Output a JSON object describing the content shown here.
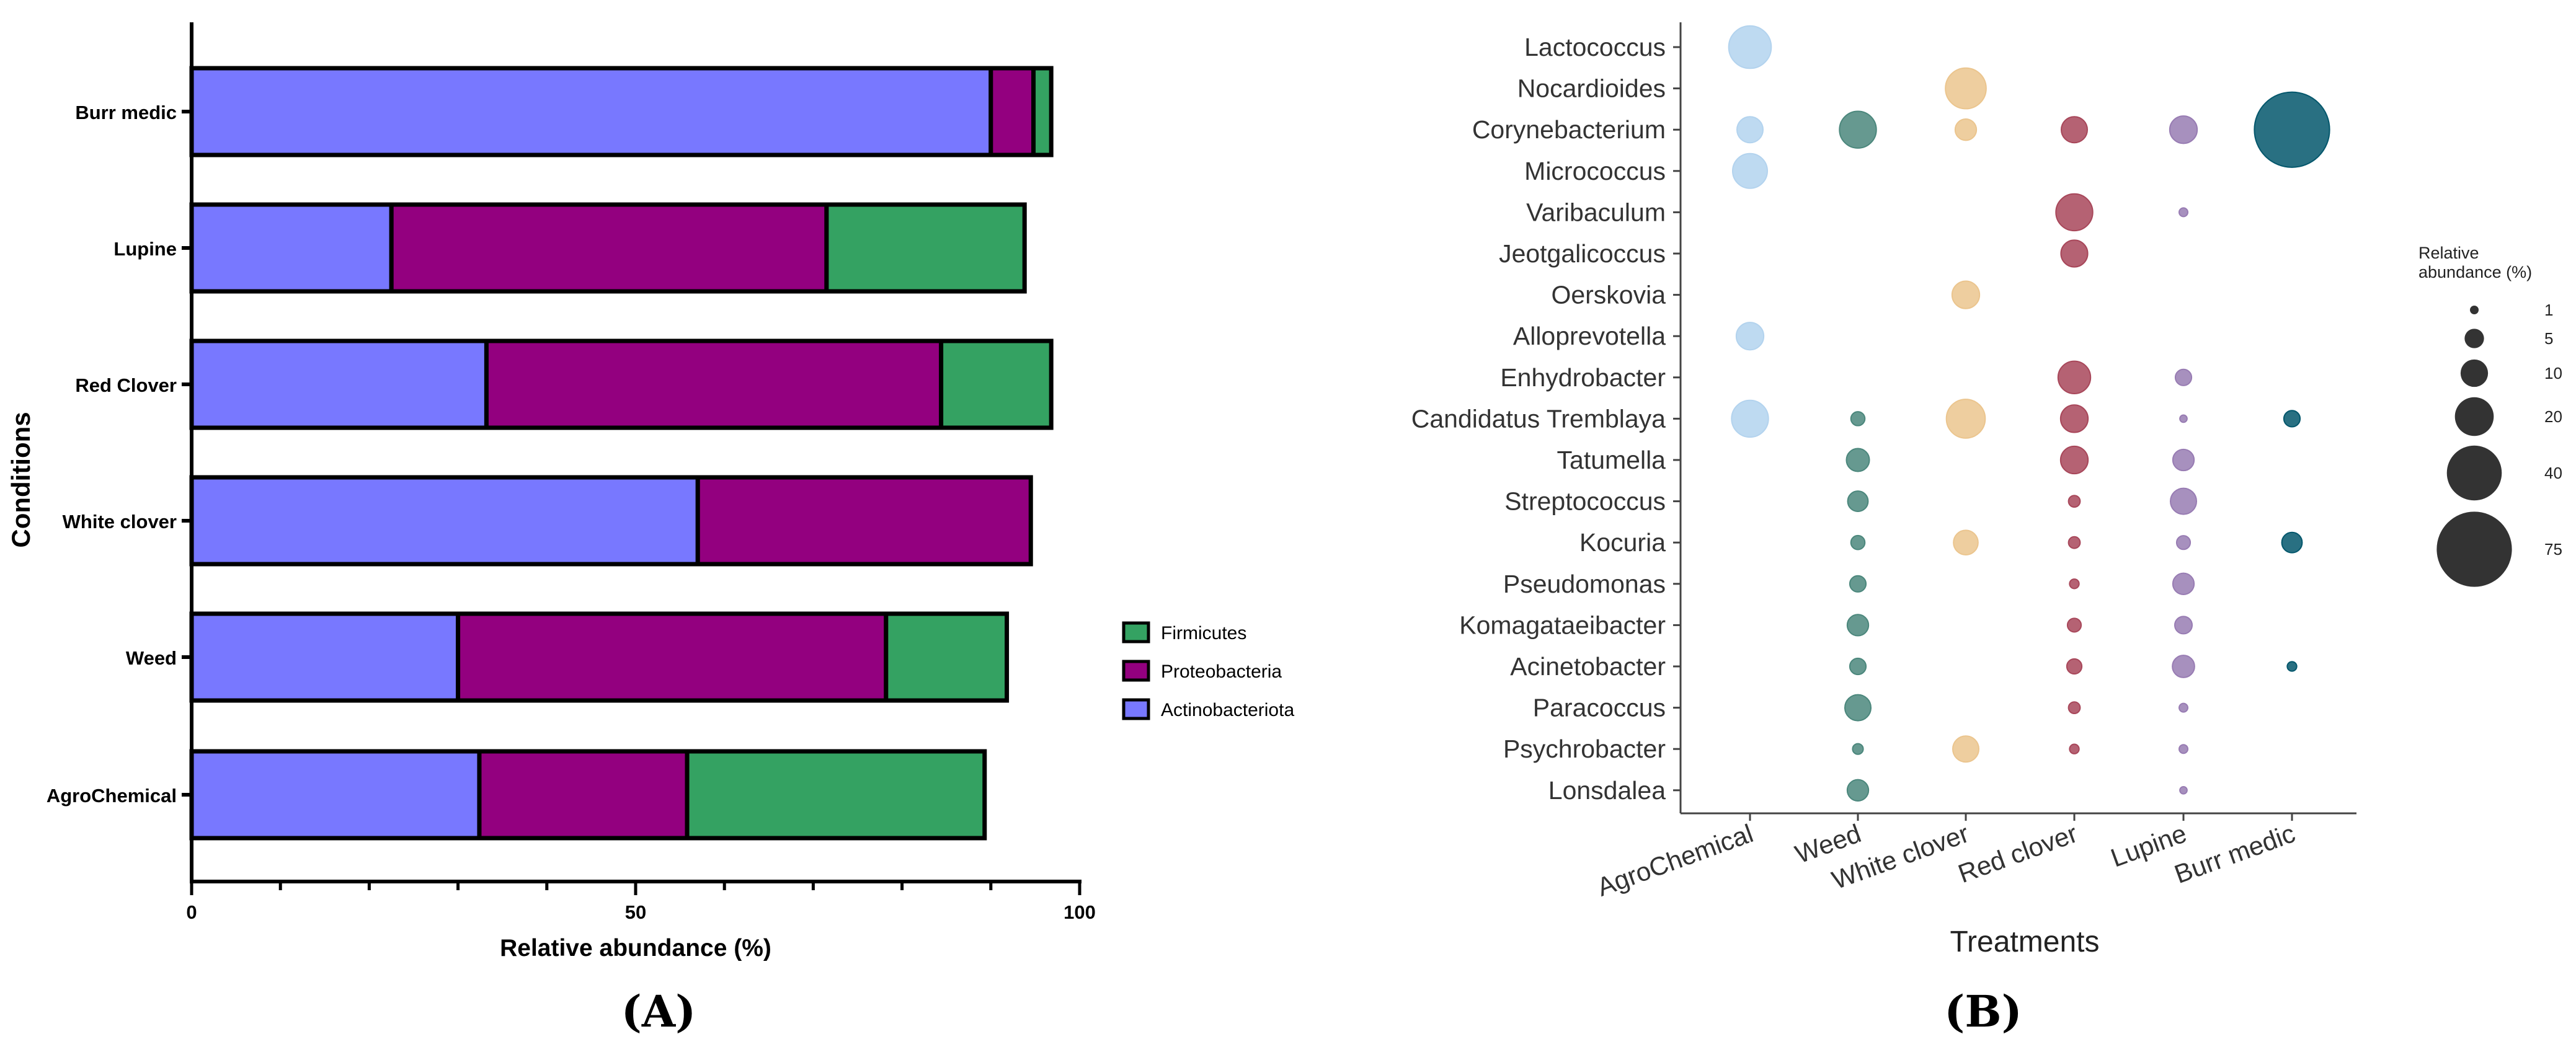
{
  "chart_data": [
    {
      "type": "bar",
      "orientation": "horizontal",
      "stacked": true,
      "panel_label": "(A)",
      "title": "",
      "xlabel": "Relative abundance (%)",
      "ylabel": "Conditions",
      "xlim": [
        0,
        100
      ],
      "xticks": [
        "0",
        "50",
        "100"
      ],
      "categories": [
        "Burr medic",
        "Lupine",
        "Red Clover",
        "White clover",
        "Weed",
        "AgroChemical"
      ],
      "series": [
        {
          "name": "Actinobacteriota",
          "color": "#7878FF",
          "values": [
            90,
            22.5,
            33.2,
            57,
            30,
            32.4
          ]
        },
        {
          "name": "Proteobacteria",
          "color": "#93007F",
          "values": [
            4.8,
            49,
            51.2,
            37.5,
            48.2,
            23.4
          ]
        },
        {
          "name": "Firmicutes",
          "color": "#34A262",
          "values": [
            2,
            22.3,
            12.4,
            0,
            13.6,
            33.5
          ]
        }
      ],
      "legend": {
        "items": [
          "Firmicutes",
          "Proteobacteria",
          "Actinobacteriota"
        ],
        "position": "right"
      }
    },
    {
      "type": "scatter",
      "subtype": "bubble",
      "panel_label": "(B)",
      "title": "",
      "xlabel": "Treatments",
      "ylabel": "",
      "x_categories": [
        "AgroChemical",
        "Weed",
        "White clover",
        "Red clover",
        "Lupine",
        "Burr medic"
      ],
      "y_categories": [
        "Lactococcus",
        "Nocardioides",
        "Corynebacterium",
        "Micrococcus",
        "Varibaculum",
        "Jeotgalicoccus",
        "Oerskovia",
        "Alloprevotella",
        "Enhydrobacter",
        "Candidatus Tremblaya",
        "Tatumella",
        "Streptococcus",
        "Kocuria",
        "Pseudomonas",
        "Komagataeibacter",
        "Acinetobacter",
        "Paracoccus",
        "Psychrobacter",
        "Lonsdalea"
      ],
      "colors": {
        "AgroChemical": "#B3D3EE",
        "Weed": "#4B877C",
        "White clover": "#EBC58E",
        "Red clover": "#A8475A",
        "Lupine": "#987CB3",
        "Burr medic": "#04576C"
      },
      "points": [
        {
          "x": "AgroChemical",
          "y": "Lactococcus",
          "size": 24
        },
        {
          "x": "AgroChemical",
          "y": "Corynebacterium",
          "size": 9
        },
        {
          "x": "AgroChemical",
          "y": "Micrococcus",
          "size": 16
        },
        {
          "x": "AgroChemical",
          "y": "Alloprevotella",
          "size": 10
        },
        {
          "x": "AgroChemical",
          "y": "Candidatus Tremblaya",
          "size": 18
        },
        {
          "x": "Weed",
          "y": "Corynebacterium",
          "size": 18
        },
        {
          "x": "Weed",
          "y": "Candidatus Tremblaya",
          "size": 2.6
        },
        {
          "x": "Weed",
          "y": "Tatumella",
          "size": 7
        },
        {
          "x": "Weed",
          "y": "Streptococcus",
          "size": 5.5
        },
        {
          "x": "Weed",
          "y": "Kocuria",
          "size": 2.6
        },
        {
          "x": "Weed",
          "y": "Pseudomonas",
          "size": 3.5
        },
        {
          "x": "Weed",
          "y": "Komagataeibacter",
          "size": 6
        },
        {
          "x": "Weed",
          "y": "Acinetobacter",
          "size": 3.5
        },
        {
          "x": "Weed",
          "y": "Paracoccus",
          "size": 9
        },
        {
          "x": "Weed",
          "y": "Psychrobacter",
          "size": 1.5
        },
        {
          "x": "Weed",
          "y": "Lonsdalea",
          "size": 6
        },
        {
          "x": "White clover",
          "y": "Nocardioides",
          "size": 22
        },
        {
          "x": "White clover",
          "y": "Corynebacterium",
          "size": 6
        },
        {
          "x": "White clover",
          "y": "Oerskovia",
          "size": 10
        },
        {
          "x": "White clover",
          "y": "Candidatus Tremblaya",
          "size": 20
        },
        {
          "x": "White clover",
          "y": "Kocuria",
          "size": 8
        },
        {
          "x": "White clover",
          "y": "Psychrobacter",
          "size": 9
        },
        {
          "x": "Red clover",
          "y": "Corynebacterium",
          "size": 9
        },
        {
          "x": "Red clover",
          "y": "Varibaculum",
          "size": 18
        },
        {
          "x": "Red clover",
          "y": "Jeotgalicoccus",
          "size": 9.5
        },
        {
          "x": "Red clover",
          "y": "Enhydrobacter",
          "size": 14
        },
        {
          "x": "Red clover",
          "y": "Candidatus Tremblaya",
          "size": 10
        },
        {
          "x": "Red clover",
          "y": "Tatumella",
          "size": 10
        },
        {
          "x": "Red clover",
          "y": "Streptococcus",
          "size": 1.8
        },
        {
          "x": "Red clover",
          "y": "Kocuria",
          "size": 1.8
        },
        {
          "x": "Red clover",
          "y": "Pseudomonas",
          "size": 1.2
        },
        {
          "x": "Red clover",
          "y": "Komagataeibacter",
          "size": 2.5
        },
        {
          "x": "Red clover",
          "y": "Acinetobacter",
          "size": 3
        },
        {
          "x": "Red clover",
          "y": "Paracoccus",
          "size": 1.8
        },
        {
          "x": "Red clover",
          "y": "Psychrobacter",
          "size": 1.2
        },
        {
          "x": "Lupine",
          "y": "Corynebacterium",
          "size": 10
        },
        {
          "x": "Lupine",
          "y": "Varibaculum",
          "size": 1
        },
        {
          "x": "Lupine",
          "y": "Enhydrobacter",
          "size": 3.5
        },
        {
          "x": "Lupine",
          "y": "Candidatus Tremblaya",
          "size": 0.7
        },
        {
          "x": "Lupine",
          "y": "Tatumella",
          "size": 6
        },
        {
          "x": "Lupine",
          "y": "Streptococcus",
          "size": 9
        },
        {
          "x": "Lupine",
          "y": "Kocuria",
          "size": 2.5
        },
        {
          "x": "Lupine",
          "y": "Pseudomonas",
          "size": 6
        },
        {
          "x": "Lupine",
          "y": "Komagataeibacter",
          "size": 4
        },
        {
          "x": "Lupine",
          "y": "Acinetobacter",
          "size": 6.5
        },
        {
          "x": "Lupine",
          "y": "Paracoccus",
          "size": 1
        },
        {
          "x": "Lupine",
          "y": "Psychrobacter",
          "size": 1
        },
        {
          "x": "Lupine",
          "y": "Lonsdalea",
          "size": 0.7
        },
        {
          "x": "Burr medic",
          "y": "Corynebacterium",
          "size": 75
        },
        {
          "x": "Burr medic",
          "y": "Candidatus Tremblaya",
          "size": 3.5
        },
        {
          "x": "Burr medic",
          "y": "Kocuria",
          "size": 5.5
        },
        {
          "x": "Burr medic",
          "y": "Acinetobacter",
          "size": 1.2
        }
      ],
      "size_legend": {
        "title_lines": [
          "Relative",
          "abundance (%)"
        ],
        "values": [
          1,
          5,
          10,
          20,
          40,
          75
        ],
        "labels": [
          "1",
          "5",
          "10",
          "20",
          "40",
          "75"
        ],
        "color": "#333333"
      }
    }
  ]
}
